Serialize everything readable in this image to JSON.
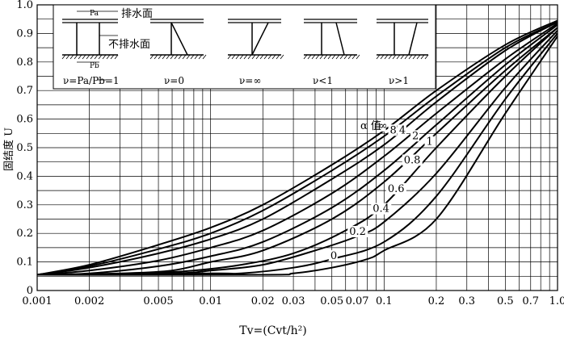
{
  "chart_data": {
    "type": "line",
    "xscale": "log",
    "xlim": [
      0.001,
      1.0
    ],
    "ylim": [
      0,
      1.0
    ],
    "grid": true,
    "xlabel": "Tv=(Cvt/h²)",
    "ylabel": "固结度 U",
    "xtick_labels": [
      "0.001",
      "0.002",
      "0.005",
      "0.01",
      "0.02",
      "0.03",
      "0.05",
      "0.07",
      "0.1",
      "0.2",
      "0.3",
      "0.5",
      "0.7",
      "1.0"
    ],
    "xtick_values": [
      0.001,
      0.002,
      0.005,
      0.01,
      0.02,
      0.03,
      0.05,
      0.07,
      0.1,
      0.2,
      0.3,
      0.5,
      0.7,
      1.0
    ],
    "ytick_labels": [
      "0",
      "0.1",
      "0.2",
      "0.3",
      "0.4",
      "0.5",
      "0.6",
      "0.7",
      "0.8",
      "0.9",
      "1.0"
    ],
    "ytick_values": [
      0,
      0.1,
      0.2,
      0.3,
      0.4,
      0.5,
      0.6,
      0.7,
      0.8,
      0.9,
      1.0
    ],
    "legend_title": "α 值",
    "series": [
      {
        "name": "∞",
        "x": [
          0.001,
          0.002,
          0.005,
          0.01,
          0.02,
          0.05,
          0.1,
          0.2,
          0.5,
          1.0
        ],
        "y": [
          0.055,
          0.09,
          0.16,
          0.22,
          0.3,
          0.44,
          0.56,
          0.7,
          0.86,
          0.945
        ]
      },
      {
        "name": "8",
        "x": [
          0.001,
          0.002,
          0.005,
          0.01,
          0.02,
          0.05,
          0.1,
          0.2,
          0.5,
          1.0
        ],
        "y": [
          0.055,
          0.085,
          0.145,
          0.2,
          0.28,
          0.42,
          0.54,
          0.68,
          0.85,
          0.94
        ]
      },
      {
        "name": "4",
        "x": [
          0.001,
          0.002,
          0.005,
          0.01,
          0.02,
          0.05,
          0.1,
          0.2,
          0.5,
          1.0
        ],
        "y": [
          0.055,
          0.08,
          0.13,
          0.18,
          0.25,
          0.39,
          0.51,
          0.66,
          0.84,
          0.94
        ]
      },
      {
        "name": "2",
        "x": [
          0.001,
          0.002,
          0.005,
          0.01,
          0.02,
          0.05,
          0.1,
          0.2,
          0.5,
          1.0
        ],
        "y": [
          0.055,
          0.07,
          0.105,
          0.15,
          0.21,
          0.34,
          0.47,
          0.62,
          0.81,
          0.935
        ]
      },
      {
        "name": "1",
        "x": [
          0.001,
          0.002,
          0.005,
          0.01,
          0.02,
          0.05,
          0.1,
          0.2,
          0.5,
          1.0
        ],
        "y": [
          0.055,
          0.06,
          0.085,
          0.12,
          0.17,
          0.29,
          0.42,
          0.58,
          0.79,
          0.93
        ]
      },
      {
        "name": "0.8",
        "x": [
          0.001,
          0.003,
          0.006,
          0.01,
          0.02,
          0.05,
          0.1,
          0.2,
          0.5,
          1.0
        ],
        "y": [
          0.055,
          0.06,
          0.07,
          0.1,
          0.14,
          0.25,
          0.38,
          0.55,
          0.77,
          0.92
        ]
      },
      {
        "name": "0.6",
        "x": [
          0.001,
          0.004,
          0.008,
          0.015,
          0.03,
          0.06,
          0.1,
          0.2,
          0.5,
          1.0
        ],
        "y": [
          0.055,
          0.06,
          0.07,
          0.09,
          0.13,
          0.21,
          0.3,
          0.5,
          0.75,
          0.92
        ]
      },
      {
        "name": "0.4",
        "x": [
          0.001,
          0.006,
          0.01,
          0.02,
          0.04,
          0.07,
          0.1,
          0.2,
          0.5,
          1.0
        ],
        "y": [
          0.055,
          0.06,
          0.07,
          0.09,
          0.14,
          0.19,
          0.24,
          0.41,
          0.71,
          0.91
        ]
      },
      {
        "name": "0.2",
        "x": [
          0.001,
          0.01,
          0.015,
          0.03,
          0.05,
          0.1,
          0.2,
          0.5,
          1.0
        ],
        "y": [
          0.055,
          0.06,
          0.06,
          0.08,
          0.11,
          0.17,
          0.33,
          0.67,
          0.9
        ]
      },
      {
        "name": "0",
        "x": [
          0.001,
          0.02,
          0.03,
          0.05,
          0.08,
          0.1,
          0.2,
          0.5,
          1.0
        ],
        "y": [
          0.055,
          0.055,
          0.06,
          0.08,
          0.11,
          0.14,
          0.25,
          0.62,
          0.89
        ]
      }
    ],
    "inset": {
      "top_label": "排水面",
      "bottom_label": "不排水面",
      "pa_label": "Pa",
      "pb_label": "Pb",
      "cases": [
        "ν=Pa/Pb=1",
        "ν=0",
        "ν=∞",
        "ν<1",
        "ν>1"
      ]
    }
  }
}
